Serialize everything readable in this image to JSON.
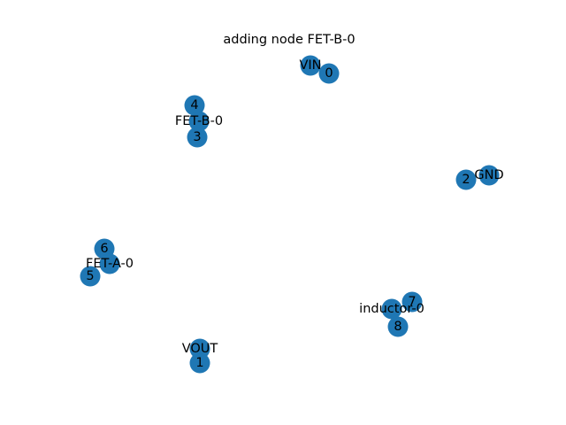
{
  "title": "adding node FET-B-0",
  "node_color": "#1f77b4",
  "nodes": [
    {
      "id": "VIN",
      "label": "VIN"
    },
    {
      "id": "0",
      "label": "0"
    },
    {
      "id": "4",
      "label": "4"
    },
    {
      "id": "FET-B-0",
      "label": "FET-B-0"
    },
    {
      "id": "3",
      "label": "3"
    },
    {
      "id": "2",
      "label": "2"
    },
    {
      "id": "GND",
      "label": "GND"
    },
    {
      "id": "6",
      "label": "6"
    },
    {
      "id": "FET-A-0",
      "label": "FET-A-0"
    },
    {
      "id": "5",
      "label": "5"
    },
    {
      "id": "7",
      "label": "7"
    },
    {
      "id": "inductor-0",
      "label": "inductor-0"
    },
    {
      "id": "8",
      "label": "8"
    },
    {
      "id": "VOUT",
      "label": "VOUT"
    },
    {
      "id": "1",
      "label": "1"
    }
  ],
  "edges": []
}
